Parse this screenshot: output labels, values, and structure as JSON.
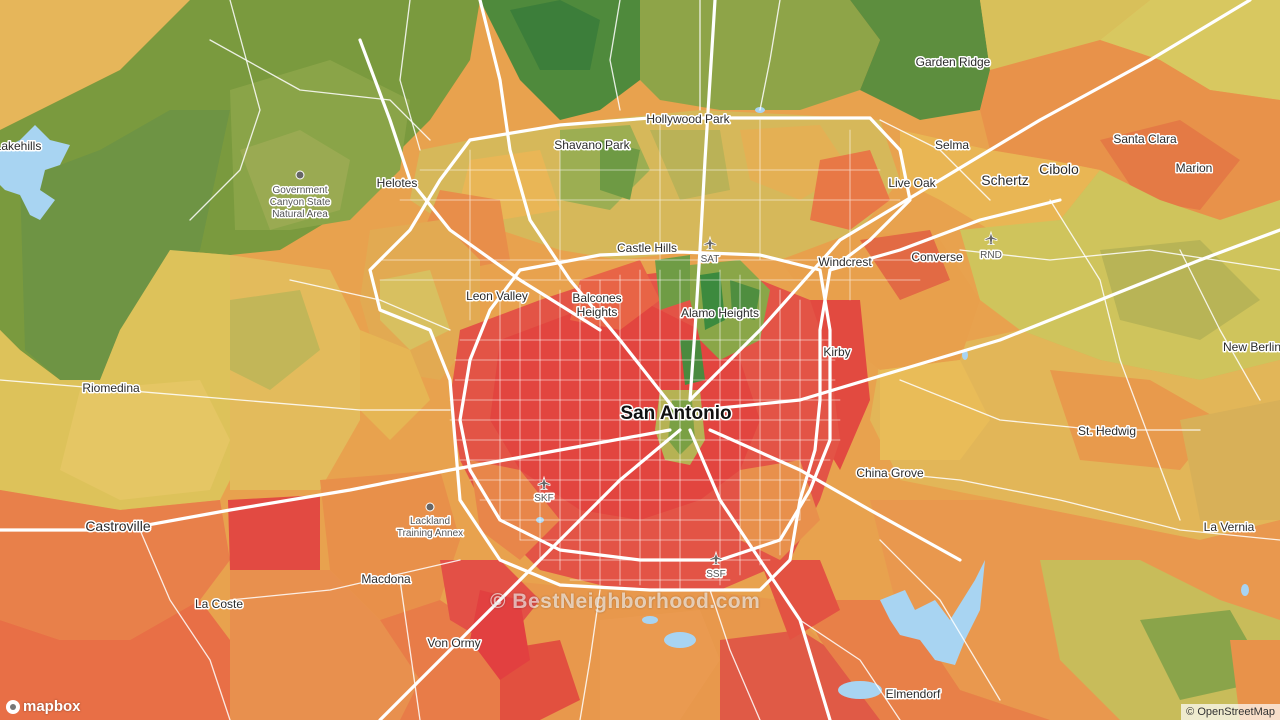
{
  "map": {
    "city_main": "San Antonio",
    "places": [
      {
        "id": "lakehills",
        "label": "Lakehills"
      },
      {
        "id": "helotes",
        "label": "Helotes"
      },
      {
        "id": "shavano-park",
        "label": "Shavano Park"
      },
      {
        "id": "hollywood-park",
        "label": "Hollywood Park"
      },
      {
        "id": "garden-ridge",
        "label": "Garden Ridge"
      },
      {
        "id": "selma",
        "label": "Selma"
      },
      {
        "id": "schertz",
        "label": "Schertz"
      },
      {
        "id": "cibolo",
        "label": "Cibolo"
      },
      {
        "id": "santa-clara",
        "label": "Santa Clara"
      },
      {
        "id": "marion",
        "label": "Marion"
      },
      {
        "id": "live-oak",
        "label": "Live Oak"
      },
      {
        "id": "castle-hills",
        "label": "Castle Hills"
      },
      {
        "id": "windcrest",
        "label": "Windcrest"
      },
      {
        "id": "converse",
        "label": "Converse"
      },
      {
        "id": "leon-valley",
        "label": "Leon Valley"
      },
      {
        "id": "balcones-heights-1",
        "label": "Balcones"
      },
      {
        "id": "balcones-heights-2",
        "label": "Heights"
      },
      {
        "id": "alamo-heights",
        "label": "Alamo Heights"
      },
      {
        "id": "kirby",
        "label": "Kirby"
      },
      {
        "id": "new-berlin",
        "label": "New Berlin"
      },
      {
        "id": "riomedina",
        "label": "Riomedina"
      },
      {
        "id": "st-hedwig",
        "label": "St. Hedwig"
      },
      {
        "id": "china-grove",
        "label": "China Grove"
      },
      {
        "id": "castroville",
        "label": "Castroville"
      },
      {
        "id": "la-vernia",
        "label": "La Vernia"
      },
      {
        "id": "macdona",
        "label": "Macdona"
      },
      {
        "id": "la-coste",
        "label": "La Coste"
      },
      {
        "id": "von-ormy",
        "label": "Von Ormy"
      },
      {
        "id": "elmendorf",
        "label": "Elmendorf"
      }
    ],
    "pois": [
      {
        "id": "gcsna-1",
        "label": "Government"
      },
      {
        "id": "gcsna-2",
        "label": "Canyon State"
      },
      {
        "id": "gcsna-3",
        "label": "Natural Area"
      },
      {
        "id": "lackland-1",
        "label": "Lackland"
      },
      {
        "id": "lackland-2",
        "label": "Training Annex"
      }
    ],
    "airports": [
      {
        "id": "sat",
        "label": "SAT"
      },
      {
        "id": "rnd",
        "label": "RND"
      },
      {
        "id": "skf",
        "label": "SKF"
      },
      {
        "id": "ssf",
        "label": "SSF"
      }
    ]
  },
  "watermark": "© BestNeighborhood.com",
  "logo": "mapbox",
  "attribution": "© OpenStreetMap"
}
